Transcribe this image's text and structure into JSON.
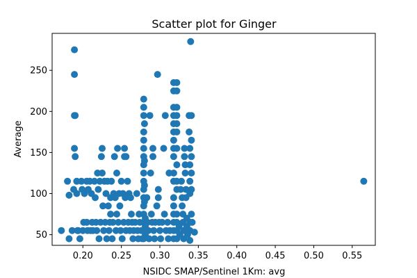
{
  "chart_data": {
    "type": "scatter",
    "title": "Scatter plot for Ginger",
    "xlabel": "NSIDC SMAP/Sentinel 1Km: avg",
    "ylabel": "Average",
    "xlim": [
      0.16,
      0.58
    ],
    "ylim": [
      37,
      295
    ],
    "xticks": [
      0.2,
      0.25,
      0.3,
      0.35,
      0.4,
      0.45,
      0.5,
      0.55
    ],
    "xtick_labels": [
      "0.20",
      "0.25",
      "0.30",
      "0.35",
      "0.40",
      "0.45",
      "0.50",
      "0.55"
    ],
    "yticks": [
      50,
      100,
      150,
      200,
      250
    ],
    "ytick_labels": [
      "50",
      "100",
      "150",
      "200",
      "250"
    ],
    "grid": false,
    "marker_color": "#1f77b4",
    "series": [
      {
        "points": [
          [
            0.172,
            55
          ],
          [
            0.18,
            115
          ],
          [
            0.182,
            45
          ],
          [
            0.182,
            98
          ],
          [
            0.186,
            55
          ],
          [
            0.188,
            105
          ],
          [
            0.189,
            275
          ],
          [
            0.189,
            245
          ],
          [
            0.189,
            195
          ],
          [
            0.19,
            195
          ],
          [
            0.189,
            155
          ],
          [
            0.19,
            145
          ],
          [
            0.192,
            115
          ],
          [
            0.192,
            100
          ],
          [
            0.193,
            55
          ],
          [
            0.194,
            55
          ],
          [
            0.196,
            45
          ],
          [
            0.198,
            115
          ],
          [
            0.199,
            105
          ],
          [
            0.2,
            55
          ],
          [
            0.201,
            65
          ],
          [
            0.202,
            100
          ],
          [
            0.205,
            115
          ],
          [
            0.205,
            65
          ],
          [
            0.206,
            55
          ],
          [
            0.207,
            105
          ],
          [
            0.209,
            115
          ],
          [
            0.21,
            55
          ],
          [
            0.211,
            100
          ],
          [
            0.212,
            65
          ],
          [
            0.213,
            55
          ],
          [
            0.215,
            115
          ],
          [
            0.216,
            95
          ],
          [
            0.217,
            65
          ],
          [
            0.218,
            55
          ],
          [
            0.219,
            125
          ],
          [
            0.22,
            105
          ],
          [
            0.221,
            45
          ],
          [
            0.222,
            115
          ],
          [
            0.223,
            65
          ],
          [
            0.224,
            145
          ],
          [
            0.225,
            155
          ],
          [
            0.225,
            125
          ],
          [
            0.226,
            85
          ],
          [
            0.227,
            55
          ],
          [
            0.228,
            115
          ],
          [
            0.229,
            65
          ],
          [
            0.23,
            100
          ],
          [
            0.231,
            45
          ],
          [
            0.232,
            115
          ],
          [
            0.233,
            85
          ],
          [
            0.234,
            55
          ],
          [
            0.235,
            65
          ],
          [
            0.236,
            75
          ],
          [
            0.236,
            95
          ],
          [
            0.237,
            115
          ],
          [
            0.238,
            45
          ],
          [
            0.239,
            65
          ],
          [
            0.24,
            100
          ],
          [
            0.241,
            145
          ],
          [
            0.242,
            95
          ],
          [
            0.243,
            55
          ],
          [
            0.244,
            125
          ],
          [
            0.244,
            75
          ],
          [
            0.245,
            155
          ],
          [
            0.246,
            65
          ],
          [
            0.247,
            100
          ],
          [
            0.248,
            85
          ],
          [
            0.249,
            55
          ],
          [
            0.25,
            115
          ],
          [
            0.251,
            45
          ],
          [
            0.252,
            100
          ],
          [
            0.253,
            65
          ],
          [
            0.254,
            145
          ],
          [
            0.254,
            155
          ],
          [
            0.255,
            95
          ],
          [
            0.256,
            55
          ],
          [
            0.256,
            145
          ],
          [
            0.258,
            115
          ],
          [
            0.259,
            65
          ],
          [
            0.26,
            100
          ],
          [
            0.261,
            55
          ],
          [
            0.262,
            95
          ],
          [
            0.263,
            75
          ],
          [
            0.264,
            65
          ],
          [
            0.265,
            45
          ],
          [
            0.266,
            55
          ],
          [
            0.268,
            65
          ],
          [
            0.27,
            100
          ],
          [
            0.271,
            55
          ],
          [
            0.272,
            45
          ],
          [
            0.273,
            75
          ],
          [
            0.274,
            65
          ],
          [
            0.276,
            55
          ],
          [
            0.277,
            45
          ],
          [
            0.279,
            215
          ],
          [
            0.279,
            205
          ],
          [
            0.279,
            195
          ],
          [
            0.279,
            175
          ],
          [
            0.279,
            165
          ],
          [
            0.279,
            155
          ],
          [
            0.279,
            145
          ],
          [
            0.279,
            135
          ],
          [
            0.279,
            125
          ],
          [
            0.279,
            115
          ],
          [
            0.279,
            105
          ],
          [
            0.279,
            95
          ],
          [
            0.279,
            85
          ],
          [
            0.279,
            75
          ],
          [
            0.279,
            65
          ],
          [
            0.279,
            55
          ],
          [
            0.279,
            45
          ],
          [
            0.28,
            185
          ],
          [
            0.28,
            140
          ],
          [
            0.28,
            110
          ],
          [
            0.28,
            90
          ],
          [
            0.281,
            70
          ],
          [
            0.281,
            60
          ],
          [
            0.281,
            50
          ],
          [
            0.283,
            95
          ],
          [
            0.284,
            65
          ],
          [
            0.285,
            55
          ],
          [
            0.286,
            45
          ],
          [
            0.287,
            195
          ],
          [
            0.288,
            125
          ],
          [
            0.289,
            75
          ],
          [
            0.29,
            65
          ],
          [
            0.291,
            155
          ],
          [
            0.291,
            145
          ],
          [
            0.292,
            55
          ],
          [
            0.293,
            45
          ],
          [
            0.294,
            65
          ],
          [
            0.296,
            85
          ],
          [
            0.297,
            245
          ],
          [
            0.298,
            95
          ],
          [
            0.298,
            105
          ],
          [
            0.299,
            65
          ],
          [
            0.3,
            55
          ],
          [
            0.301,
            45
          ],
          [
            0.303,
            65
          ],
          [
            0.305,
            155
          ],
          [
            0.306,
            75
          ],
          [
            0.307,
            195
          ],
          [
            0.308,
            55
          ],
          [
            0.31,
            65
          ],
          [
            0.311,
            45
          ],
          [
            0.312,
            125
          ],
          [
            0.313,
            55
          ],
          [
            0.318,
            235
          ],
          [
            0.318,
            225
          ],
          [
            0.318,
            205
          ],
          [
            0.318,
            195
          ],
          [
            0.318,
            185
          ],
          [
            0.318,
            175
          ],
          [
            0.318,
            165
          ],
          [
            0.318,
            155
          ],
          [
            0.318,
            145
          ],
          [
            0.318,
            125
          ],
          [
            0.318,
            115
          ],
          [
            0.318,
            95
          ],
          [
            0.318,
            85
          ],
          [
            0.318,
            75
          ],
          [
            0.318,
            65
          ],
          [
            0.318,
            55
          ],
          [
            0.318,
            45
          ],
          [
            0.322,
            235
          ],
          [
            0.322,
            225
          ],
          [
            0.322,
            205
          ],
          [
            0.322,
            195
          ],
          [
            0.322,
            185
          ],
          [
            0.322,
            175
          ],
          [
            0.322,
            155
          ],
          [
            0.322,
            135
          ],
          [
            0.322,
            115
          ],
          [
            0.322,
            105
          ],
          [
            0.322,
            75
          ],
          [
            0.322,
            65
          ],
          [
            0.322,
            55
          ],
          [
            0.322,
            45
          ],
          [
            0.325,
            60
          ],
          [
            0.326,
            50
          ],
          [
            0.327,
            105
          ],
          [
            0.328,
            115
          ],
          [
            0.329,
            95
          ],
          [
            0.329,
            85
          ],
          [
            0.33,
            75
          ],
          [
            0.33,
            65
          ],
          [
            0.331,
            55
          ],
          [
            0.331,
            45
          ],
          [
            0.332,
            155
          ],
          [
            0.332,
            145
          ],
          [
            0.333,
            135
          ],
          [
            0.333,
            125
          ],
          [
            0.334,
            105
          ],
          [
            0.334,
            95
          ],
          [
            0.335,
            70
          ],
          [
            0.335,
            60
          ],
          [
            0.336,
            50
          ],
          [
            0.338,
            195
          ],
          [
            0.338,
            175
          ],
          [
            0.339,
            155
          ],
          [
            0.339,
            135
          ],
          [
            0.339,
            115
          ],
          [
            0.339,
            100
          ],
          [
            0.339,
            65
          ],
          [
            0.339,
            55
          ],
          [
            0.339,
            43
          ],
          [
            0.34,
            285
          ],
          [
            0.341,
            195
          ],
          [
            0.341,
            165
          ],
          [
            0.341,
            145
          ],
          [
            0.341,
            125
          ],
          [
            0.341,
            105
          ],
          [
            0.341,
            75
          ],
          [
            0.342,
            65
          ],
          [
            0.345,
            53
          ],
          [
            0.565,
            115
          ]
        ]
      }
    ]
  }
}
